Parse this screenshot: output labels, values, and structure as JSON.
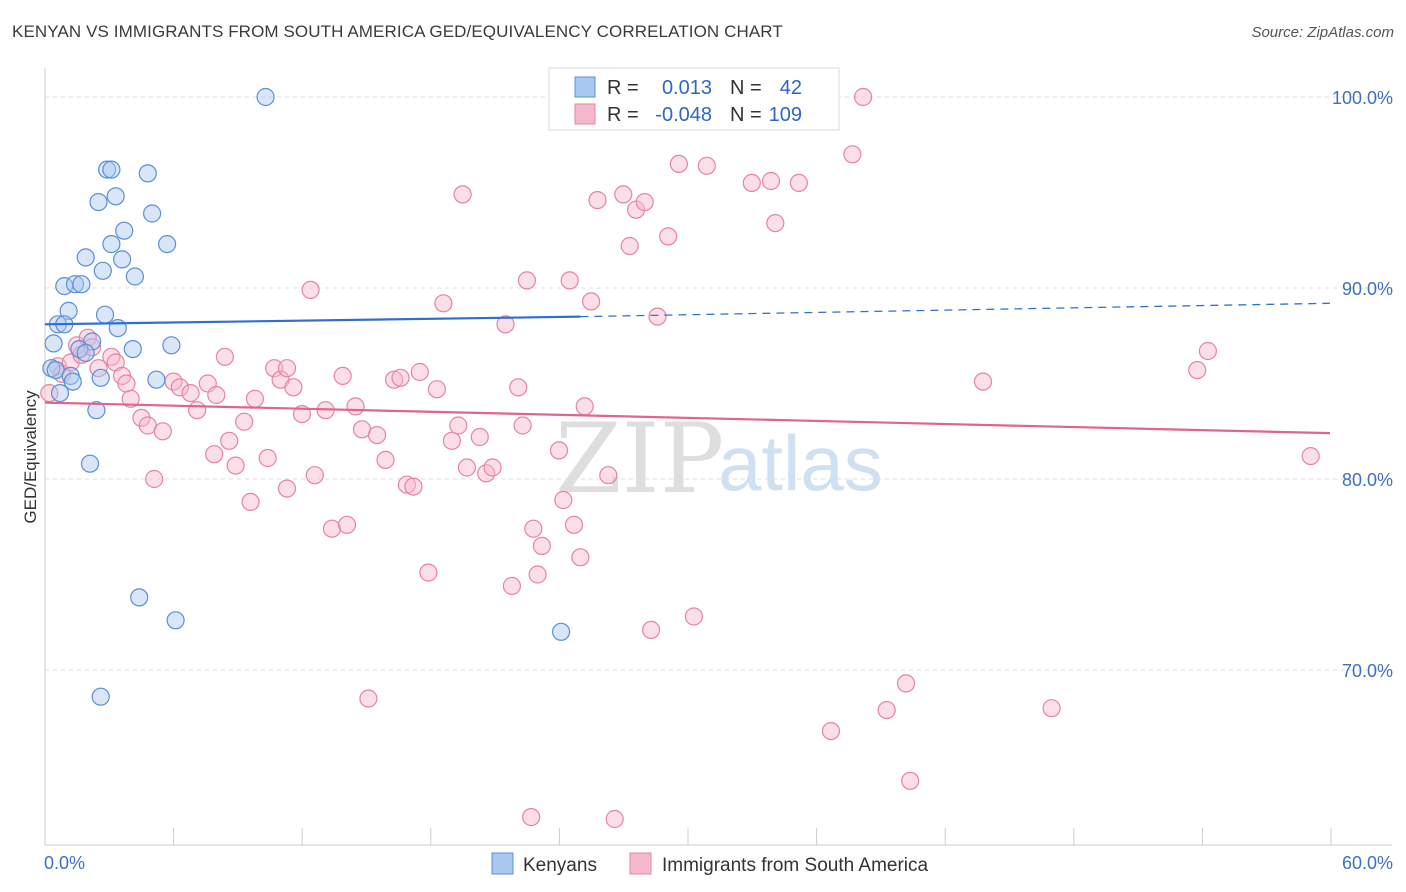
{
  "header": {
    "title": "KENYAN VS IMMIGRANTS FROM SOUTH AMERICA GED/EQUIVALENCY CORRELATION CHART",
    "source": "Source: ZipAtlas.com"
  },
  "watermark": {
    "part1": "ZIP",
    "part2": "atlas"
  },
  "colors": {
    "kenyans_fill": "#a9c8ef",
    "kenyans_stroke": "#5b8fd6",
    "kenyans_line": "#2f6fcf",
    "sa_fill": "#f6b8cc",
    "sa_stroke": "#e8839f",
    "sa_line": "#e0648c",
    "tick_text": "#3f6fc4",
    "grid": "#dddddd"
  },
  "legend_box": {
    "row1": {
      "r_label": "R =",
      "r_value": "0.013",
      "n_label": "N =",
      "n_value": "42"
    },
    "row2": {
      "r_label": "R =",
      "r_value": "-0.048",
      "n_label": "N =",
      "n_value": "109"
    }
  },
  "chart_data": {
    "type": "scatter",
    "title": "KENYAN VS IMMIGRANTS FROM SOUTH AMERICA GED/EQUIVALENCY CORRELATION CHART",
    "ylabel": "GED/Equivalency",
    "xlabel": "",
    "xlim": [
      0,
      60
    ],
    "ylim": [
      61,
      101.5
    ],
    "x_tick_labels": [
      "0.0%",
      "60.0%"
    ],
    "y_ticks": [
      {
        "value": 100,
        "label": "100.0%"
      },
      {
        "value": 90,
        "label": "90.0%"
      },
      {
        "value": 80,
        "label": "80.0%"
      },
      {
        "value": 70,
        "label": "70.0%"
      }
    ],
    "grid": true,
    "legend_placement": "bottom-center",
    "series": [
      {
        "name": "Kenyans",
        "r": 0.013,
        "n": 42,
        "trend": {
          "x0": 0,
          "y0": 88.1,
          "x1": 25,
          "y1": 88.5,
          "dashed_to_x": 60,
          "dashed_y1": 89.2
        },
        "points": [
          [
            10.3,
            100.0
          ],
          [
            24.3,
            100.0
          ],
          [
            2.9,
            96.2
          ],
          [
            3.1,
            96.2
          ],
          [
            4.8,
            96.0
          ],
          [
            2.5,
            94.5
          ],
          [
            3.3,
            94.8
          ],
          [
            5.0,
            93.9
          ],
          [
            3.7,
            93.0
          ],
          [
            3.1,
            92.3
          ],
          [
            5.7,
            92.3
          ],
          [
            1.9,
            91.6
          ],
          [
            3.6,
            91.5
          ],
          [
            2.7,
            90.9
          ],
          [
            4.2,
            90.6
          ],
          [
            0.9,
            90.1
          ],
          [
            1.4,
            90.2
          ],
          [
            1.7,
            90.2
          ],
          [
            1.1,
            88.8
          ],
          [
            2.8,
            88.6
          ],
          [
            0.6,
            88.1
          ],
          [
            0.9,
            88.1
          ],
          [
            3.4,
            87.9
          ],
          [
            0.4,
            87.1
          ],
          [
            2.2,
            87.2
          ],
          [
            1.6,
            86.8
          ],
          [
            4.1,
            86.8
          ],
          [
            5.9,
            87.0
          ],
          [
            1.9,
            86.6
          ],
          [
            0.3,
            85.8
          ],
          [
            0.5,
            85.7
          ],
          [
            1.2,
            85.4
          ],
          [
            2.6,
            85.3
          ],
          [
            1.3,
            85.1
          ],
          [
            5.2,
            85.2
          ],
          [
            0.7,
            84.5
          ],
          [
            2.4,
            83.6
          ],
          [
            2.1,
            80.8
          ],
          [
            4.4,
            73.8
          ],
          [
            6.1,
            72.6
          ],
          [
            2.6,
            68.6
          ],
          [
            24.1,
            72.0
          ]
        ]
      },
      {
        "name": "Immigrants from South America",
        "r": -0.048,
        "n": 109,
        "trend": {
          "x0": 0,
          "y0": 84.0,
          "x1": 60,
          "y1": 82.4
        },
        "points": [
          [
            0.2,
            84.5
          ],
          [
            0.6,
            85.9
          ],
          [
            0.8,
            85.5
          ],
          [
            1.2,
            86.1
          ],
          [
            1.5,
            87.0
          ],
          [
            1.7,
            86.5
          ],
          [
            2.0,
            87.4
          ],
          [
            2.2,
            86.9
          ],
          [
            2.5,
            85.8
          ],
          [
            3.1,
            86.4
          ],
          [
            3.3,
            86.1
          ],
          [
            3.6,
            85.4
          ],
          [
            3.8,
            85.0
          ],
          [
            4.0,
            84.2
          ],
          [
            4.5,
            83.2
          ],
          [
            4.8,
            82.8
          ],
          [
            5.1,
            80.0
          ],
          [
            5.5,
            82.5
          ],
          [
            6.0,
            85.1
          ],
          [
            6.3,
            84.8
          ],
          [
            6.8,
            84.5
          ],
          [
            7.1,
            83.6
          ],
          [
            7.6,
            85.0
          ],
          [
            8.0,
            84.4
          ],
          [
            7.9,
            81.3
          ],
          [
            8.4,
            86.4
          ],
          [
            8.6,
            82.0
          ],
          [
            8.9,
            80.7
          ],
          [
            9.3,
            83.0
          ],
          [
            9.6,
            78.8
          ],
          [
            9.8,
            84.2
          ],
          [
            10.4,
            81.1
          ],
          [
            10.7,
            85.8
          ],
          [
            11.0,
            85.2
          ],
          [
            11.3,
            85.8
          ],
          [
            11.6,
            84.8
          ],
          [
            11.3,
            79.5
          ],
          [
            12.0,
            83.4
          ],
          [
            12.4,
            89.9
          ],
          [
            12.6,
            80.2
          ],
          [
            13.1,
            83.6
          ],
          [
            13.4,
            77.4
          ],
          [
            13.9,
            85.4
          ],
          [
            14.1,
            77.6
          ],
          [
            14.5,
            83.8
          ],
          [
            14.8,
            82.6
          ],
          [
            15.1,
            68.5
          ],
          [
            15.5,
            82.3
          ],
          [
            15.9,
            81.0
          ],
          [
            16.3,
            85.2
          ],
          [
            16.6,
            85.3
          ],
          [
            16.9,
            79.7
          ],
          [
            17.2,
            79.6
          ],
          [
            17.5,
            85.6
          ],
          [
            17.9,
            75.1
          ],
          [
            18.3,
            84.7
          ],
          [
            18.6,
            89.2
          ],
          [
            19.0,
            82.0
          ],
          [
            19.3,
            82.8
          ],
          [
            19.5,
            94.9
          ],
          [
            19.7,
            80.6
          ],
          [
            20.3,
            82.2
          ],
          [
            20.6,
            80.3
          ],
          [
            20.9,
            80.6
          ],
          [
            21.5,
            88.1
          ],
          [
            21.8,
            74.4
          ],
          [
            22.1,
            84.8
          ],
          [
            22.3,
            82.8
          ],
          [
            22.5,
            90.4
          ],
          [
            22.8,
            77.4
          ],
          [
            23.0,
            75.0
          ],
          [
            23.2,
            76.5
          ],
          [
            22.7,
            62.3
          ],
          [
            24.0,
            81.5
          ],
          [
            24.2,
            78.9
          ],
          [
            24.5,
            90.4
          ],
          [
            24.7,
            77.6
          ],
          [
            25.0,
            75.9
          ],
          [
            25.2,
            83.8
          ],
          [
            25.5,
            89.3
          ],
          [
            25.8,
            94.6
          ],
          [
            26.3,
            80.2
          ],
          [
            26.6,
            62.2
          ],
          [
            27.0,
            94.9
          ],
          [
            27.3,
            92.2
          ],
          [
            27.6,
            94.1
          ],
          [
            28.0,
            94.5
          ],
          [
            28.3,
            72.1
          ],
          [
            28.6,
            88.5
          ],
          [
            29.1,
            92.7
          ],
          [
            29.6,
            96.5
          ],
          [
            30.3,
            72.8
          ],
          [
            30.9,
            96.4
          ],
          [
            31.8,
            100.0
          ],
          [
            33.0,
            95.5
          ],
          [
            33.9,
            95.6
          ],
          [
            34.1,
            93.4
          ],
          [
            35.2,
            95.5
          ],
          [
            36.7,
            66.8
          ],
          [
            37.7,
            97.0
          ],
          [
            38.2,
            100.0
          ],
          [
            39.3,
            67.9
          ],
          [
            40.2,
            69.3
          ],
          [
            40.4,
            64.2
          ],
          [
            43.8,
            85.1
          ],
          [
            47.0,
            68.0
          ],
          [
            53.8,
            85.7
          ],
          [
            54.3,
            86.7
          ],
          [
            59.1,
            81.2
          ]
        ]
      }
    ]
  },
  "bottom_legend": {
    "items": [
      {
        "label": "Kenyans"
      },
      {
        "label": "Immigrants from South America"
      }
    ]
  }
}
